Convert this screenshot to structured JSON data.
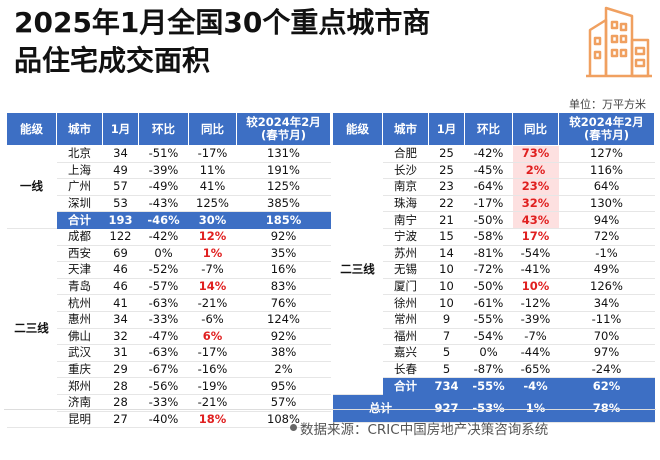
{
  "title": {
    "line1": "2025年1月全国30个重点城市商",
    "line2": "品住宅成交面积"
  },
  "unit": "单位：万平方米",
  "headers": [
    "能级",
    "城市",
    "1月",
    "环比",
    "同比",
    "较2024年2月\n(春节月)"
  ],
  "left": {
    "tier1_label": "一线",
    "tier1": [
      {
        "city": "北京",
        "v": "34",
        "mom": "-51%",
        "yoy": "-17%",
        "cmp": "131%"
      },
      {
        "city": "上海",
        "v": "49",
        "mom": "-39%",
        "yoy": "11%",
        "cmp": "191%"
      },
      {
        "city": "广州",
        "v": "57",
        "mom": "-49%",
        "yoy": "41%",
        "cmp": "125%"
      },
      {
        "city": "深圳",
        "v": "53",
        "mom": "-43%",
        "yoy": "125%",
        "cmp": "385%"
      }
    ],
    "tier1_sum": {
      "city": "合计",
      "v": "193",
      "mom": "-46%",
      "yoy": "30%",
      "cmp": "185%"
    },
    "tier2_label": "二三线",
    "tier2": [
      {
        "city": "成都",
        "v": "122",
        "mom": "-42%",
        "yoy": "12%",
        "cmp": "92%"
      },
      {
        "city": "西安",
        "v": "69",
        "mom": "0%",
        "yoy": "1%",
        "cmp": "35%"
      },
      {
        "city": "天津",
        "v": "46",
        "mom": "-52%",
        "yoy": "-7%",
        "cmp": "16%"
      },
      {
        "city": "青岛",
        "v": "46",
        "mom": "-57%",
        "yoy": "14%",
        "cmp": "83%"
      },
      {
        "city": "杭州",
        "v": "41",
        "mom": "-63%",
        "yoy": "-21%",
        "cmp": "76%"
      },
      {
        "city": "惠州",
        "v": "34",
        "mom": "-33%",
        "yoy": "-6%",
        "cmp": "124%"
      },
      {
        "city": "佛山",
        "v": "32",
        "mom": "-47%",
        "yoy": "6%",
        "cmp": "92%"
      },
      {
        "city": "武汉",
        "v": "31",
        "mom": "-63%",
        "yoy": "-17%",
        "cmp": "38%"
      },
      {
        "city": "重庆",
        "v": "29",
        "mom": "-67%",
        "yoy": "-16%",
        "cmp": "2%"
      },
      {
        "city": "郑州",
        "v": "28",
        "mom": "-56%",
        "yoy": "-19%",
        "cmp": "95%"
      },
      {
        "city": "济南",
        "v": "28",
        "mom": "-33%",
        "yoy": "-21%",
        "cmp": "57%"
      },
      {
        "city": "昆明",
        "v": "27",
        "mom": "-40%",
        "yoy": "18%",
        "cmp": "108%"
      }
    ]
  },
  "right": {
    "tier_label": "二三线",
    "rows": [
      {
        "city": "合肥",
        "v": "25",
        "mom": "-42%",
        "yoy": "73%",
        "cmp": "127%"
      },
      {
        "city": "长沙",
        "v": "25",
        "mom": "-45%",
        "yoy": "2%",
        "cmp": "116%"
      },
      {
        "city": "南京",
        "v": "23",
        "mom": "-64%",
        "yoy": "23%",
        "cmp": "64%"
      },
      {
        "city": "珠海",
        "v": "22",
        "mom": "-17%",
        "yoy": "32%",
        "cmp": "130%"
      },
      {
        "city": "南宁",
        "v": "21",
        "mom": "-50%",
        "yoy": "43%",
        "cmp": "94%"
      },
      {
        "city": "宁波",
        "v": "15",
        "mom": "-58%",
        "yoy": "17%",
        "cmp": "72%"
      },
      {
        "city": "苏州",
        "v": "14",
        "mom": "-81%",
        "yoy": "-54%",
        "cmp": "-1%"
      },
      {
        "city": "无锡",
        "v": "10",
        "mom": "-72%",
        "yoy": "-41%",
        "cmp": "49%"
      },
      {
        "city": "厦门",
        "v": "10",
        "mom": "-50%",
        "yoy": "10%",
        "cmp": "126%"
      },
      {
        "city": "徐州",
        "v": "10",
        "mom": "-61%",
        "yoy": "-12%",
        "cmp": "34%"
      },
      {
        "city": "常州",
        "v": "9",
        "mom": "-55%",
        "yoy": "-39%",
        "cmp": "-11%"
      },
      {
        "city": "福州",
        "v": "7",
        "mom": "-54%",
        "yoy": "-7%",
        "cmp": "70%"
      },
      {
        "city": "嘉兴",
        "v": "5",
        "mom": "0%",
        "yoy": "-44%",
        "cmp": "97%"
      },
      {
        "city": "长春",
        "v": "5",
        "mom": "-87%",
        "yoy": "-65%",
        "cmp": "-24%"
      }
    ],
    "sum": {
      "city": "合计",
      "v": "734",
      "mom": "-55%",
      "yoy": "-4%",
      "cmp": "62%"
    },
    "total": {
      "label": "总计",
      "v": "927",
      "mom": "-53%",
      "yoy": "1%",
      "cmp": "78%"
    }
  },
  "source": "数据来源：CRIC中国房地产决策咨询系统",
  "colors": {
    "header_bg": "#3d6fc4",
    "red": "#e02020",
    "logo": "#f0a060"
  }
}
